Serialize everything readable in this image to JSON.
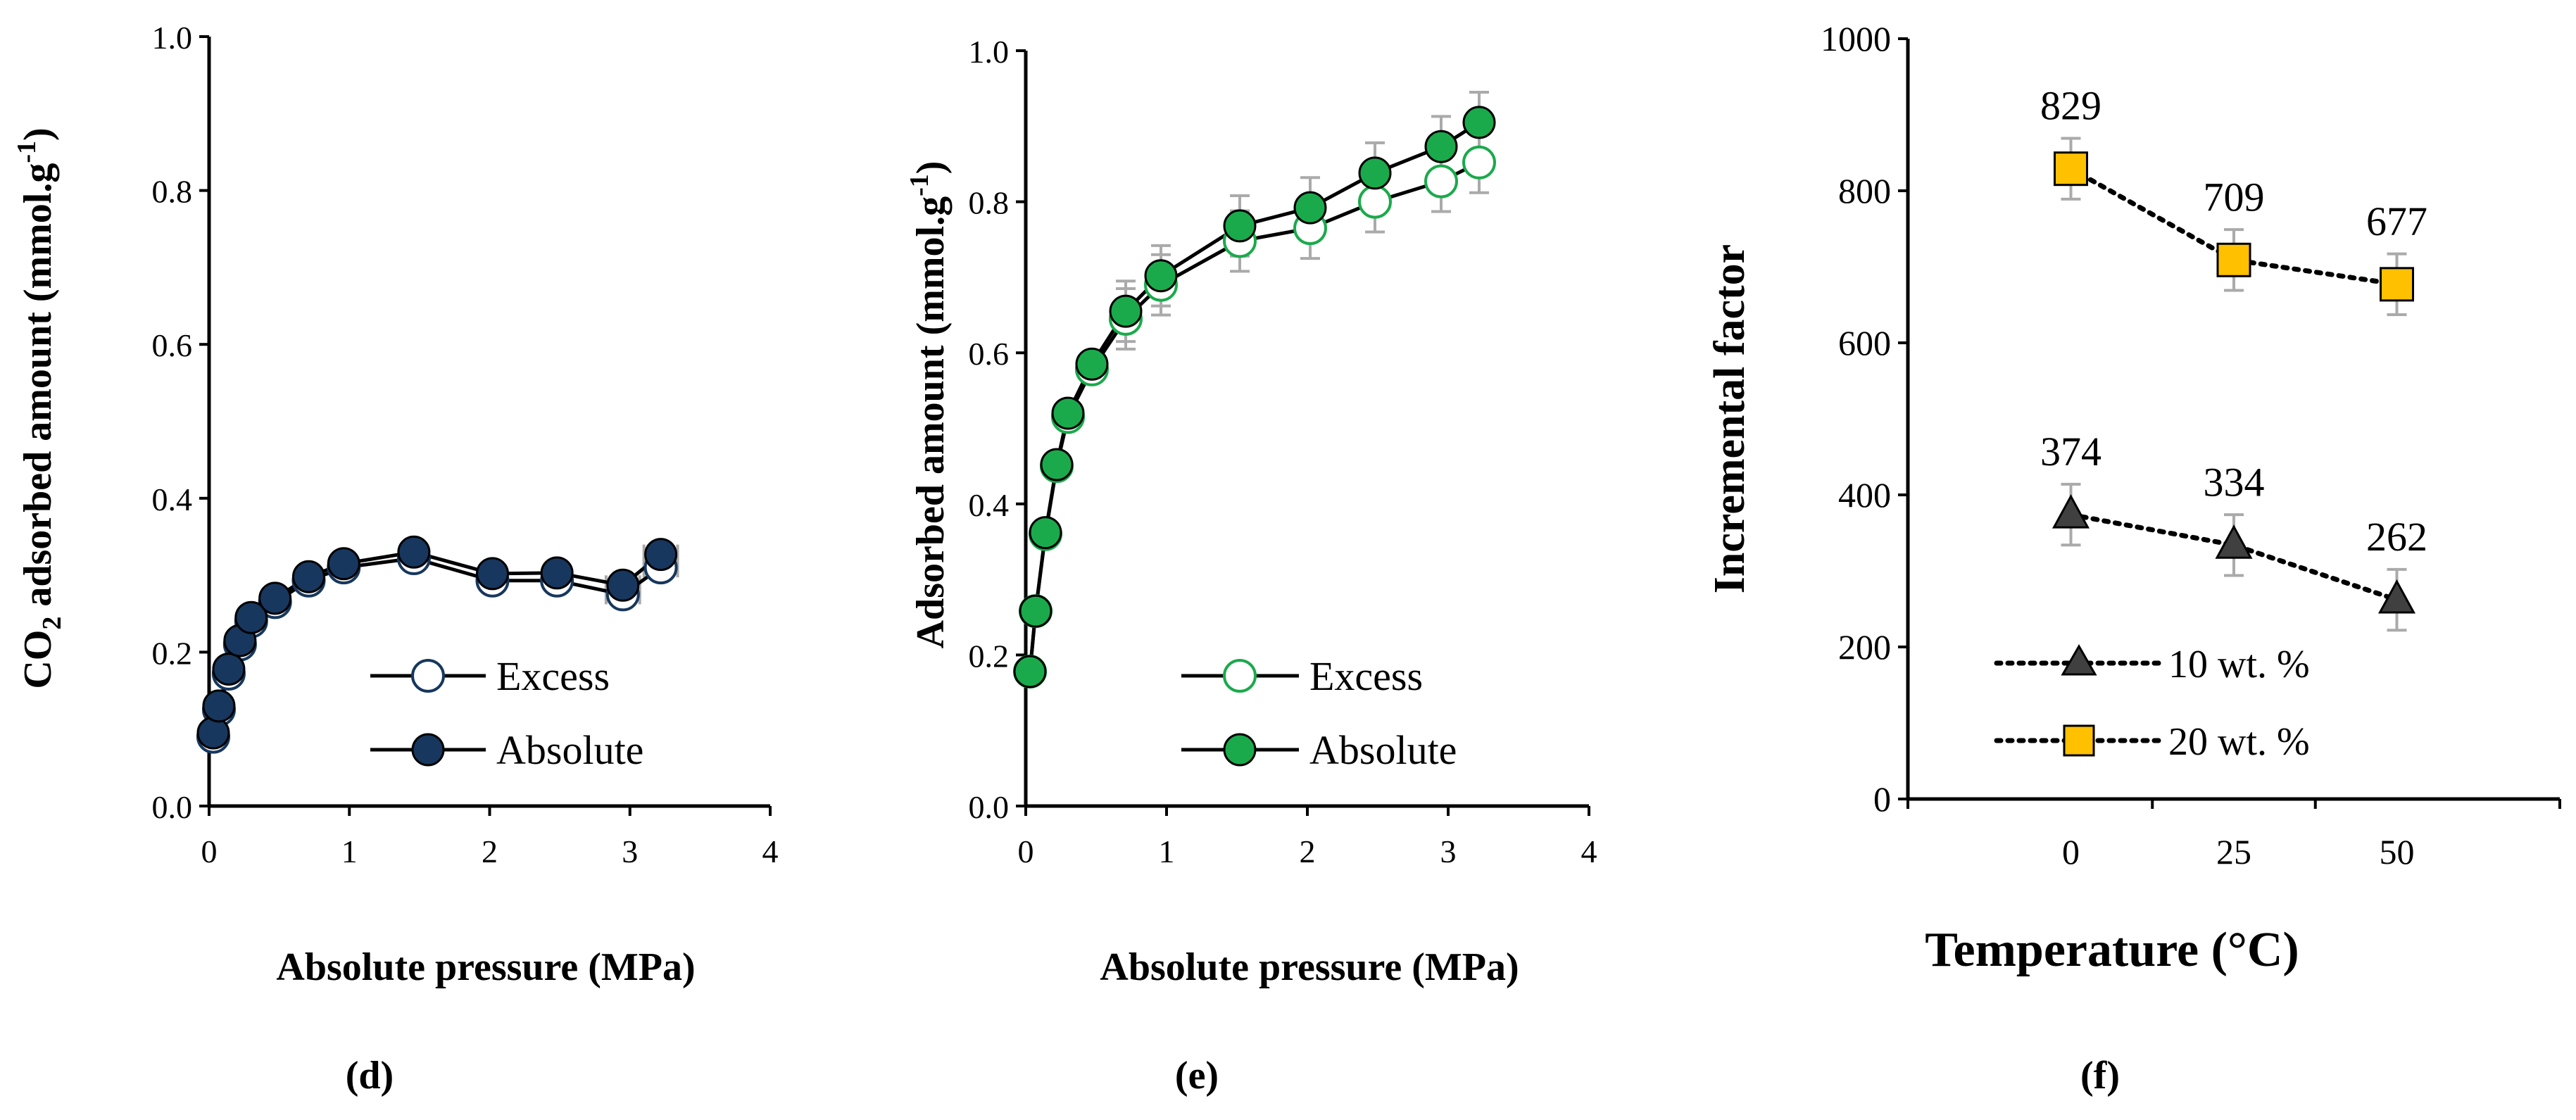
{
  "chart_data": [
    {
      "panel_label": "(d)",
      "type": "line",
      "title": "",
      "xlabel": "Absolute pressure (MPa)",
      "ylabel_prefix": "CO",
      "ylabel_sub": "2",
      "ylabel_mid": " adsorbed amount (mmol.g",
      "ylabel_sup": "-1",
      "ylabel_end": ")",
      "xlim": [
        0,
        4
      ],
      "ylim": [
        0,
        1.0
      ],
      "xticks": [
        "0",
        "1",
        "2",
        "3",
        "4"
      ],
      "yticks": [
        "0.0",
        "0.2",
        "0.4",
        "0.6",
        "0.8",
        "1.0"
      ],
      "x": [
        0.03,
        0.07,
        0.14,
        0.22,
        0.3,
        0.47,
        0.71,
        0.96,
        1.46,
        2.02,
        2.48,
        2.95,
        3.22
      ],
      "error_x": 0.12,
      "series": [
        {
          "name": "Excess",
          "marker": "open-circle",
          "color": "#17375e",
          "values": [
            0.09,
            0.125,
            0.172,
            0.21,
            0.24,
            0.265,
            0.293,
            0.31,
            0.322,
            0.293,
            0.293,
            0.275,
            0.31
          ]
        },
        {
          "name": "Absolute",
          "marker": "filled-circle",
          "color": "#17375e",
          "values": [
            0.095,
            0.13,
            0.178,
            0.215,
            0.245,
            0.27,
            0.298,
            0.315,
            0.33,
            0.302,
            0.303,
            0.287,
            0.327
          ]
        }
      ],
      "legend": "bottom-right"
    },
    {
      "panel_label": "(e)",
      "type": "line",
      "title": "",
      "xlabel": "Absolute pressure (MPa)",
      "ylabel_prefix": "",
      "ylabel_sub": "",
      "ylabel_mid": "Adsorbed amount (mmol.g",
      "ylabel_sup": "-1",
      "ylabel_end": ")",
      "xlim": [
        0,
        4
      ],
      "ylim": [
        0,
        1.0
      ],
      "xticks": [
        "0",
        "1",
        "2",
        "3",
        "4"
      ],
      "yticks": [
        "0.0",
        "0.2",
        "0.4",
        "0.6",
        "0.8",
        "1.0"
      ],
      "x": [
        0.03,
        0.07,
        0.14,
        0.22,
        0.3,
        0.47,
        0.71,
        0.96,
        1.52,
        2.02,
        2.48,
        2.95,
        3.22
      ],
      "error_y": 0.04,
      "series": [
        {
          "name": "Excess",
          "marker": "open-circle",
          "color": "#1aaa4b",
          "values": [
            0.178,
            0.258,
            0.36,
            0.45,
            0.515,
            0.578,
            0.645,
            0.69,
            0.748,
            0.765,
            0.8,
            0.827,
            0.852
          ]
        },
        {
          "name": "Absolute",
          "marker": "filled-circle",
          "color": "#1aaa4b",
          "values": [
            0.178,
            0.258,
            0.362,
            0.452,
            0.52,
            0.585,
            0.655,
            0.702,
            0.768,
            0.792,
            0.838,
            0.873,
            0.905
          ]
        }
      ],
      "legend": "bottom-right"
    },
    {
      "panel_label": "(f)",
      "type": "line",
      "title": "",
      "xlabel": "Temperature (°C)",
      "ylabel": "Incremental factor",
      "xlim": [
        -25,
        75
      ],
      "ylim": [
        0,
        1000
      ],
      "xticks": [
        "0",
        "25",
        "50"
      ],
      "x": [
        0,
        25,
        50
      ],
      "yticks": [
        "0",
        "200",
        "400",
        "600",
        "800",
        "1000"
      ],
      "error_y": 40,
      "series": [
        {
          "name": "10 wt. %",
          "marker": "triangle",
          "color": "#404040",
          "values": [
            374,
            334,
            262
          ],
          "labels": [
            "374",
            "334",
            "262"
          ]
        },
        {
          "name": "20 wt. %",
          "marker": "square",
          "color": "#ffc000",
          "values": [
            829,
            709,
            677
          ],
          "labels": [
            "829",
            "709",
            "677"
          ]
        }
      ],
      "legend": "bottom-left"
    }
  ]
}
